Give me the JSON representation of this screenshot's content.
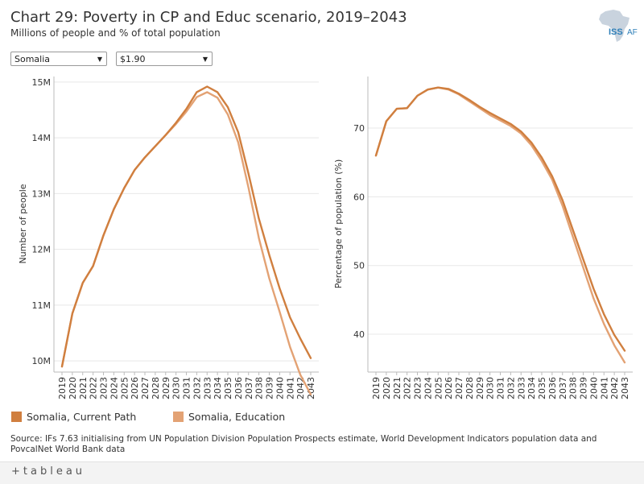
{
  "header": {
    "title": "Chart 29: Poverty in CP and Educ scenario, 2019–2043",
    "subtitle": "Millions of people and % of total population"
  },
  "logo": {
    "text_main": "ISS",
    "text_sub": "AF"
  },
  "filters": {
    "country": {
      "value": "Somalia"
    },
    "poverty_line": {
      "value": "$1.90"
    }
  },
  "colors": {
    "current_path": "#d07f3f",
    "education": "#e3a274",
    "axis": "#bbbbbb",
    "grid": "#e8e8e8"
  },
  "legend": {
    "current_path": "Somalia, Current Path",
    "education": "Somalia, Education"
  },
  "chart_data": [
    {
      "type": "line",
      "title": "Number of people",
      "ylabel": "Number of people",
      "xlabel": "",
      "ylim": [
        9.8,
        15.1
      ],
      "yticks": [
        10,
        11,
        12,
        13,
        14,
        15
      ],
      "ytick_labels": [
        "10M",
        "11M",
        "12M",
        "13M",
        "14M",
        "15M"
      ],
      "x": [
        2019,
        2020,
        2021,
        2022,
        2023,
        2024,
        2025,
        2026,
        2027,
        2028,
        2029,
        2030,
        2031,
        2032,
        2033,
        2034,
        2035,
        2036,
        2037,
        2038,
        2039,
        2040,
        2041,
        2042,
        2043
      ],
      "series": [
        {
          "name": "Somalia, Current Path",
          "values": [
            9.9,
            10.85,
            11.4,
            11.7,
            12.25,
            12.72,
            13.1,
            13.42,
            13.65,
            13.85,
            14.05,
            14.27,
            14.52,
            14.82,
            14.92,
            14.82,
            14.55,
            14.1,
            13.35,
            12.55,
            11.9,
            11.3,
            10.78,
            10.4,
            10.05
          ]
        },
        {
          "name": "Somalia, Education",
          "values": [
            9.9,
            10.85,
            11.4,
            11.7,
            12.25,
            12.72,
            13.1,
            13.42,
            13.65,
            13.85,
            14.05,
            14.25,
            14.47,
            14.73,
            14.82,
            14.72,
            14.42,
            13.92,
            13.1,
            12.2,
            11.48,
            10.88,
            10.25,
            9.75,
            9.4
          ]
        }
      ]
    },
    {
      "type": "line",
      "title": "Percentage of population",
      "ylabel": "Percentage of population (%)",
      "xlabel": "",
      "ylim": [
        34.5,
        77.5
      ],
      "yticks": [
        40,
        50,
        60,
        70
      ],
      "ytick_labels": [
        "40",
        "50",
        "60",
        "70"
      ],
      "x": [
        2019,
        2020,
        2021,
        2022,
        2023,
        2024,
        2025,
        2026,
        2027,
        2028,
        2029,
        2030,
        2031,
        2032,
        2033,
        2034,
        2035,
        2036,
        2037,
        2038,
        2039,
        2040,
        2041,
        2042,
        2043
      ],
      "series": [
        {
          "name": "Somalia, Current Path",
          "values": [
            66,
            71,
            72.8,
            72.9,
            74.7,
            75.6,
            75.9,
            75.7,
            75,
            74.1,
            73.1,
            72.2,
            71.4,
            70.6,
            69.5,
            67.9,
            65.7,
            63,
            59.5,
            55.2,
            50.9,
            46.6,
            42.9,
            39.9,
            37.6
          ]
        },
        {
          "name": "Somalia, Education",
          "values": [
            66,
            71,
            72.8,
            72.9,
            74.7,
            75.6,
            75.9,
            75.6,
            74.9,
            73.9,
            72.9,
            71.9,
            71.1,
            70.3,
            69.2,
            67.5,
            65.2,
            62.5,
            58.7,
            54.2,
            49.7,
            45.2,
            41.5,
            38.4,
            35.9
          ]
        }
      ]
    }
  ],
  "source": "Source: IFs 7.63 initialising from UN Population Division Population Prospects estimate, World Development Indicators population data and PovcalNet World Bank data",
  "footer": {
    "brand": "+tableau"
  }
}
